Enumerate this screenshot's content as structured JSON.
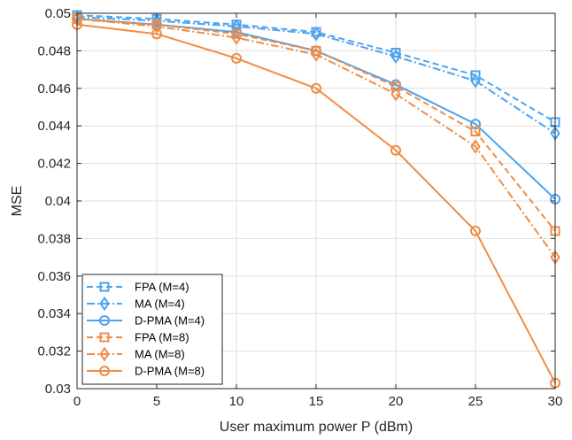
{
  "chart_data": {
    "type": "line",
    "title": "",
    "xlabel": "User maximum power P (dBm)",
    "ylabel": "MSE",
    "x": [
      0,
      5,
      10,
      15,
      20,
      25,
      30
    ],
    "xlim": [
      0,
      30
    ],
    "ylim": [
      0.03,
      0.05
    ],
    "xticks": [
      0,
      5,
      10,
      15,
      20,
      25,
      30
    ],
    "xtick_labels": [
      "0",
      "5",
      "10",
      "15",
      "20",
      "25",
      "30"
    ],
    "yticks": [
      0.03,
      0.032,
      0.034,
      0.036,
      0.038,
      0.04,
      0.042,
      0.044,
      0.046,
      0.048,
      0.05
    ],
    "ytick_labels": [
      "0.03",
      "0.032",
      "0.034",
      "0.036",
      "0.038",
      "0.04",
      "0.042",
      "0.044",
      "0.046",
      "0.048",
      "0.05"
    ],
    "grid": true,
    "legend_position": "bottom-left",
    "series": [
      {
        "name": "FPA (M=4)",
        "color": "#4da3ee",
        "dash": "dashed",
        "marker": "square",
        "values": [
          0.0499,
          0.0497,
          0.0494,
          0.049,
          0.0479,
          0.0467,
          0.0442
        ]
      },
      {
        "name": "MA (M=4)",
        "color": "#4da3ee",
        "dash": "dashdot",
        "marker": "diamond",
        "values": [
          0.0498,
          0.0496,
          0.0493,
          0.0489,
          0.0477,
          0.0464,
          0.0436
        ]
      },
      {
        "name": "D-PMA (M=4)",
        "color": "#4da3ee",
        "dash": "solid",
        "marker": "circle",
        "values": [
          0.0497,
          0.0494,
          0.049,
          0.048,
          0.0462,
          0.0441,
          0.0401
        ]
      },
      {
        "name": "FPA (M=8)",
        "color": "#f08c45",
        "dash": "dashed",
        "marker": "square",
        "values": [
          0.0497,
          0.0494,
          0.0489,
          0.048,
          0.0461,
          0.0437,
          0.0384
        ]
      },
      {
        "name": "MA (M=8)",
        "color": "#f08c45",
        "dash": "dashdot",
        "marker": "diamond",
        "values": [
          0.0497,
          0.0493,
          0.0487,
          0.0478,
          0.0457,
          0.0429,
          0.037
        ]
      },
      {
        "name": "D-PMA (M=8)",
        "color": "#f08c45",
        "dash": "solid",
        "marker": "circle",
        "values": [
          0.0494,
          0.0489,
          0.0476,
          0.046,
          0.0427,
          0.0384,
          0.0303
        ]
      }
    ]
  }
}
